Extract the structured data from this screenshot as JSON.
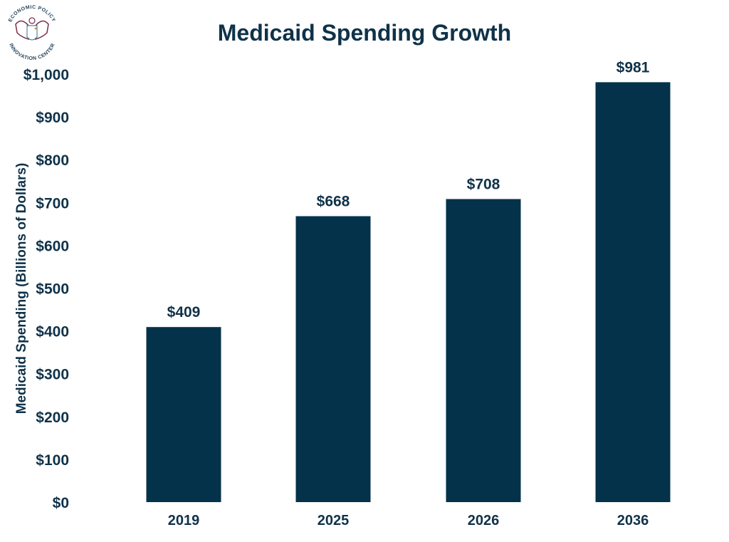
{
  "logo": {
    "text_top": "ECONOMIC POLICY",
    "text_bottom": "INNOVATION CENTER"
  },
  "colors": {
    "bar": "#04324a",
    "text": "#0f3249",
    "logo": "#7a2e4a",
    "logo_accent": "#2a6f9e"
  },
  "chart_data": {
    "type": "bar",
    "title": "Medicaid Spending Growth",
    "xlabel": "",
    "ylabel": "Medicaid Spending (Billions of Dollars)",
    "categories": [
      "2019",
      "2025",
      "2026",
      "2036"
    ],
    "values": [
      409,
      668,
      708,
      981
    ],
    "data_labels": [
      "$409",
      "$668",
      "$708",
      "$981"
    ],
    "ylim": [
      0,
      1000
    ],
    "yticks": [
      0,
      100,
      200,
      300,
      400,
      500,
      600,
      700,
      800,
      900,
      1000
    ],
    "ytick_labels": [
      "$0",
      "$100",
      "$200",
      "$300",
      "$400",
      "$500",
      "$600",
      "$700",
      "$800",
      "$900",
      "$1,000"
    ],
    "grid": false,
    "legend": "none"
  }
}
